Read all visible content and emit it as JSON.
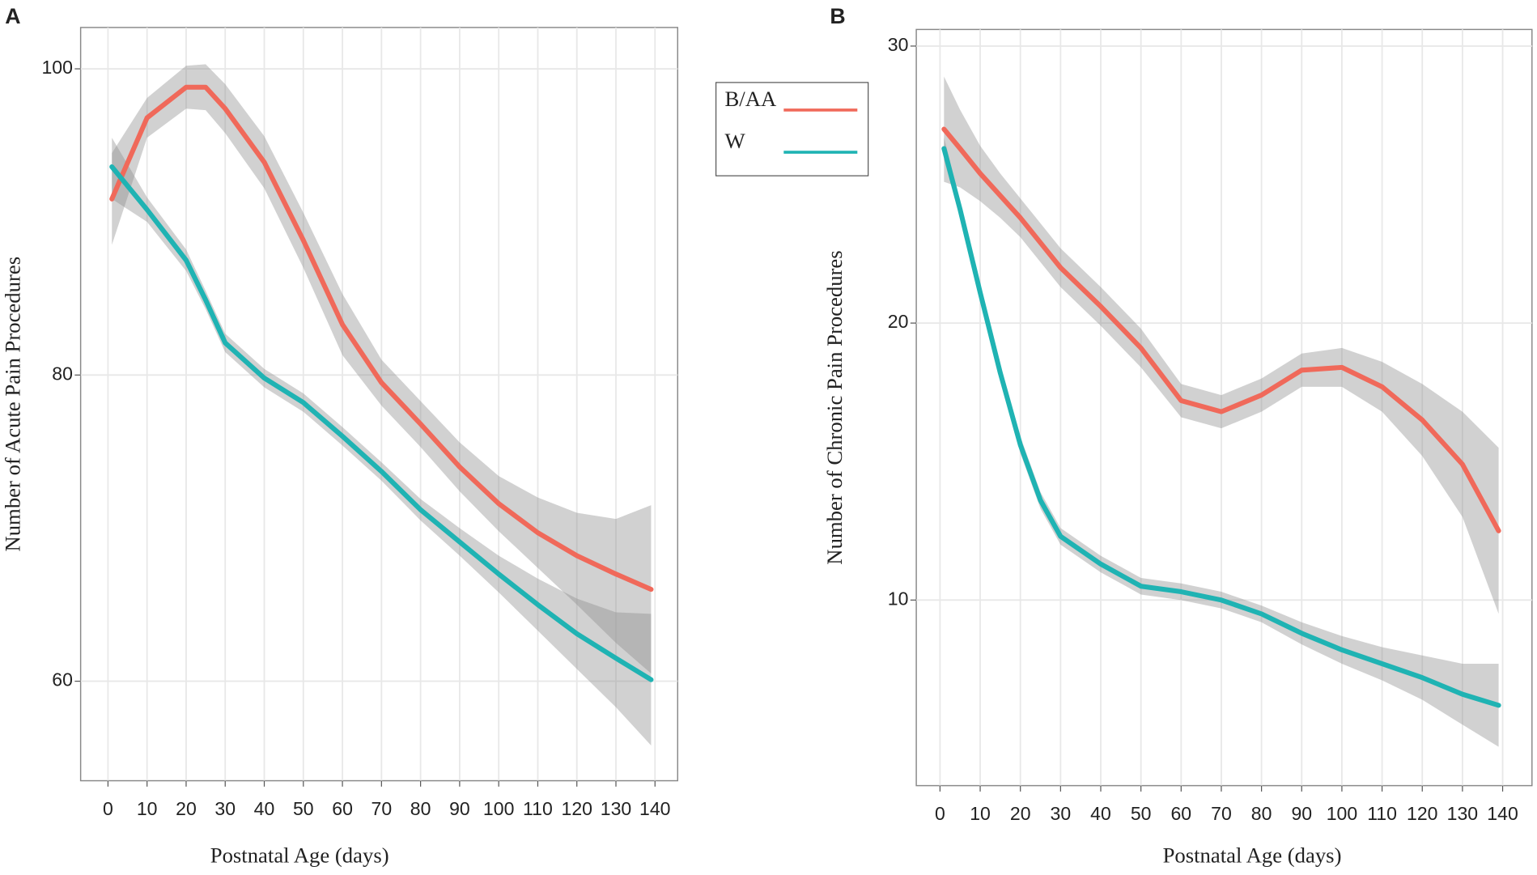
{
  "chart_data": [
    {
      "type": "line",
      "label": "A",
      "xlabel": "Postnatal Age (days)",
      "ylabel": "Number of Acute Pain Procedures",
      "x": [
        1,
        10,
        20,
        25,
        30,
        40,
        50,
        60,
        70,
        80,
        90,
        100,
        110,
        120,
        130,
        139
      ],
      "xlim": [
        -7,
        145.8
      ],
      "ylim": [
        53.5,
        102.7
      ],
      "xticks": [
        0,
        10,
        20,
        30,
        40,
        50,
        60,
        70,
        80,
        90,
        100,
        110,
        120,
        130,
        140
      ],
      "yticks": [
        60,
        80,
        100
      ],
      "grid": true,
      "series": [
        {
          "name": "B/AA",
          "color": "#f0695a",
          "values": [
            91.5,
            96.8,
            98.8,
            98.8,
            97.4,
            93.9,
            88.8,
            83.3,
            79.5,
            76.8,
            74.0,
            71.6,
            69.7,
            68.2,
            67.0,
            66.0
          ],
          "lower": [
            88.5,
            95.5,
            97.4,
            97.3,
            95.8,
            92.2,
            87.0,
            81.3,
            78.0,
            75.3,
            72.4,
            69.8,
            67.4,
            65.0,
            62.5,
            60.5
          ],
          "upper": [
            94.5,
            98.1,
            100.2,
            100.3,
            99.0,
            95.6,
            90.6,
            85.3,
            81.0,
            78.3,
            75.6,
            73.4,
            72.0,
            71.0,
            70.6,
            71.5
          ]
        },
        {
          "name": "W",
          "color": "#1fb3b3",
          "values": [
            93.6,
            90.8,
            87.5,
            84.9,
            82.1,
            79.8,
            78.2,
            76.0,
            73.7,
            71.2,
            69.1,
            67.0,
            65.0,
            63.1,
            61.5,
            60.1
          ],
          "lower": [
            91.5,
            90.0,
            86.8,
            84.3,
            81.5,
            79.2,
            77.6,
            75.4,
            73.1,
            70.5,
            68.2,
            65.8,
            63.3,
            60.8,
            58.3,
            55.8
          ],
          "upper": [
            95.5,
            91.6,
            88.2,
            85.5,
            82.7,
            80.4,
            78.8,
            76.6,
            74.3,
            71.9,
            70.0,
            68.2,
            66.7,
            65.4,
            64.5,
            64.4
          ]
        }
      ]
    },
    {
      "type": "line",
      "label": "B",
      "xlabel": "Postnatal Age (days)",
      "ylabel": "Number of Chronic Pain Procedures",
      "x": [
        1,
        5,
        10,
        15,
        20,
        25,
        30,
        40,
        50,
        60,
        70,
        80,
        90,
        100,
        110,
        120,
        130,
        139
      ],
      "xlim": [
        -5.9,
        147.3
      ],
      "ylim": [
        3.3,
        30.6
      ],
      "xticks": [
        0,
        10,
        20,
        30,
        40,
        50,
        60,
        70,
        80,
        90,
        100,
        110,
        120,
        130,
        140
      ],
      "yticks": [
        10,
        20,
        30
      ],
      "grid": true,
      "series": [
        {
          "color": "#f0695a",
          "values": [
            27.0,
            26.3,
            25.4,
            24.6,
            23.8,
            22.9,
            22.0,
            20.6,
            19.1,
            17.2,
            16.8,
            17.4,
            18.3,
            18.4,
            17.7,
            16.5,
            14.9,
            12.5
          ],
          "lower": [
            25.1,
            24.9,
            24.4,
            23.8,
            23.1,
            22.2,
            21.3,
            19.9,
            18.4,
            16.6,
            16.2,
            16.8,
            17.7,
            17.7,
            16.8,
            15.2,
            13.0,
            9.5
          ],
          "upper": [
            28.9,
            27.7,
            26.4,
            25.4,
            24.5,
            23.6,
            22.7,
            21.3,
            19.8,
            17.8,
            17.4,
            18.0,
            18.9,
            19.1,
            18.6,
            17.8,
            16.8,
            15.5
          ]
        },
        {
          "color": "#1fb3b3",
          "values": [
            26.3,
            24.1,
            21.1,
            18.2,
            15.6,
            13.6,
            12.3,
            11.3,
            10.5,
            10.3,
            10.0,
            9.5,
            8.8,
            8.2,
            7.7,
            7.2,
            6.6,
            6.2
          ],
          "lower": [
            25.9,
            23.8,
            20.8,
            17.9,
            15.3,
            13.3,
            12.0,
            11.0,
            10.2,
            10.0,
            9.7,
            9.2,
            8.4,
            7.7,
            7.1,
            6.4,
            5.5,
            4.7
          ],
          "upper": [
            26.7,
            24.4,
            21.4,
            18.5,
            15.9,
            13.9,
            12.6,
            11.6,
            10.8,
            10.6,
            10.3,
            9.8,
            9.2,
            8.7,
            8.3,
            8.0,
            7.7,
            7.7
          ]
        }
      ]
    }
  ]
}
